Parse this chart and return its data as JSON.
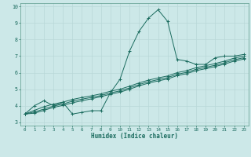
{
  "title": "",
  "xlabel": "Humidex (Indice chaleur)",
  "ylabel": "",
  "xlim": [
    -0.5,
    23.5
  ],
  "ylim": [
    2.8,
    10.2
  ],
  "xticks": [
    0,
    1,
    2,
    3,
    4,
    5,
    6,
    7,
    8,
    9,
    10,
    11,
    12,
    13,
    14,
    15,
    16,
    17,
    18,
    19,
    20,
    21,
    22,
    23
  ],
  "yticks": [
    3,
    4,
    5,
    6,
    7,
    8,
    9,
    10
  ],
  "bg_color": "#cce8e8",
  "line_color": "#1a6b5e",
  "grid_color": "#b8d8d8",
  "font_color": "#1a6b5e",
  "series": [
    {
      "x": [
        0,
        1,
        2,
        3,
        4,
        5,
        6,
        7,
        8,
        9,
        10,
        11,
        12,
        13,
        14,
        15,
        16,
        17,
        18,
        19,
        20,
        21,
        22,
        23
      ],
      "y": [
        3.5,
        4.0,
        4.3,
        4.0,
        4.2,
        3.5,
        3.6,
        3.7,
        3.7,
        4.8,
        5.6,
        7.3,
        8.5,
        9.3,
        9.8,
        9.1,
        6.8,
        6.7,
        6.5,
        6.5,
        6.9,
        7.0,
        7.0,
        7.1
      ]
    },
    {
      "x": [
        0,
        1,
        2,
        3,
        4,
        5,
        6,
        7,
        8,
        9,
        10,
        11,
        12,
        13,
        14,
        15,
        16,
        17,
        18,
        19,
        20,
        21,
        22,
        23
      ],
      "y": [
        3.5,
        3.72,
        3.94,
        4.1,
        4.22,
        4.38,
        4.5,
        4.6,
        4.72,
        4.88,
        5.0,
        5.18,
        5.38,
        5.55,
        5.68,
        5.8,
        6.0,
        6.12,
        6.3,
        6.42,
        6.55,
        6.7,
        6.88,
        7.0
      ]
    },
    {
      "x": [
        0,
        1,
        2,
        3,
        4,
        5,
        6,
        7,
        8,
        9,
        10,
        11,
        12,
        13,
        14,
        15,
        16,
        17,
        18,
        19,
        20,
        21,
        22,
        23
      ],
      "y": [
        3.5,
        3.62,
        3.8,
        3.98,
        4.1,
        4.28,
        4.4,
        4.5,
        4.62,
        4.78,
        4.9,
        5.08,
        5.28,
        5.45,
        5.58,
        5.7,
        5.9,
        6.02,
        6.2,
        6.32,
        6.45,
        6.6,
        6.78,
        6.9
      ]
    },
    {
      "x": [
        0,
        1,
        2,
        3,
        4,
        5,
        6,
        7,
        8,
        9,
        10,
        11,
        12,
        13,
        14,
        15,
        16,
        17,
        18,
        19,
        20,
        21,
        22,
        23
      ],
      "y": [
        3.5,
        3.55,
        3.72,
        3.9,
        4.02,
        4.18,
        4.3,
        4.42,
        4.55,
        4.7,
        4.82,
        5.0,
        5.2,
        5.37,
        5.5,
        5.62,
        5.82,
        5.94,
        6.12,
        6.24,
        6.37,
        6.52,
        6.7,
        6.82
      ]
    }
  ]
}
